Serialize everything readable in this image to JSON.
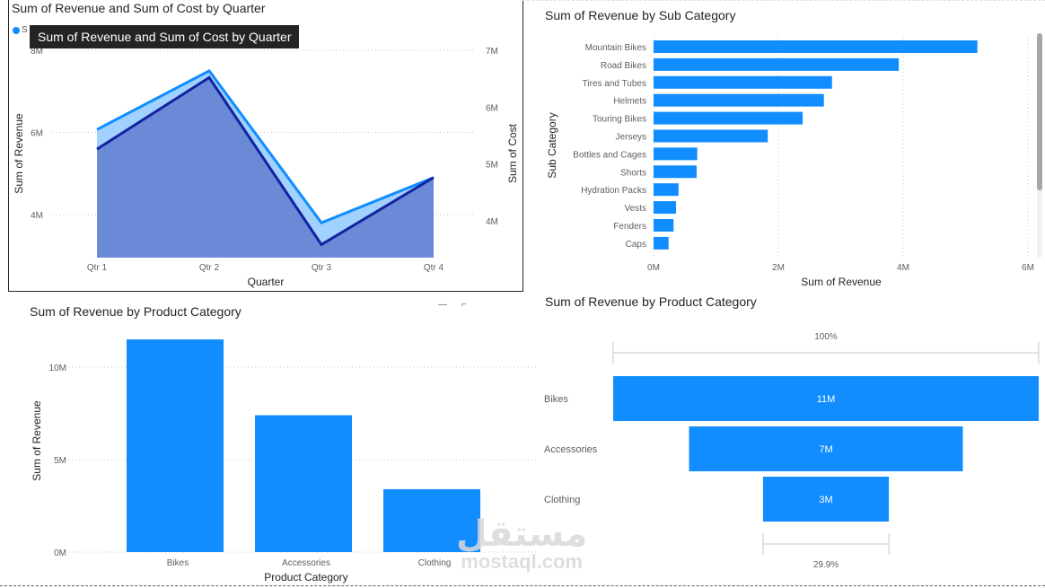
{
  "colors": {
    "accent": "#118dff",
    "revenue_area": "#a0d1ff",
    "revenue_line": "#118dff",
    "cost_area": "#6a8ad8",
    "cost_line": "#12239e",
    "tooltip_bg": "#252423"
  },
  "tooltip": {
    "text": "Sum of Revenue and Sum of Cost by Quarter"
  },
  "legend": {
    "partial_label": "S"
  },
  "watermark": {
    "arabic": "مستقل",
    "latin": "mostaql.com"
  },
  "chart_data": [
    {
      "id": "quarter_combo",
      "type": "area",
      "title": "Sum of Revenue and Sum of Cost by Quarter",
      "categories": [
        "Qtr 1",
        "Qtr 2",
        "Qtr 3",
        "Qtr 4"
      ],
      "xlabel": "Quarter",
      "ylabel": "Sum of Revenue",
      "y2label": "Sum of Cost",
      "y_ticks": [
        "8M",
        "6M",
        "4M"
      ],
      "y_tick_values": [
        8,
        6,
        4
      ],
      "y2_ticks": [
        "7M",
        "6M",
        "5M",
        "4M"
      ],
      "y2_tick_values": [
        7,
        6,
        5,
        4
      ],
      "ylim": [
        2.95,
        8.0
      ],
      "y2lim": [
        3.35,
        7.0
      ],
      "series": [
        {
          "name": "Sum of Revenue",
          "axis": "left",
          "values": [
            6.07,
            7.5,
            3.8,
            4.9
          ]
        },
        {
          "name": "Sum of Cost",
          "axis": "right",
          "values": [
            5.26,
            6.52,
            3.58,
            4.76
          ]
        }
      ],
      "units": "M",
      "grid": true
    },
    {
      "id": "subcategory_bar",
      "type": "bar",
      "orientation": "horizontal",
      "title": "Sum of Revenue by Sub Category",
      "categories": [
        "Mountain Bikes",
        "Road Bikes",
        "Tires and Tubes",
        "Helmets",
        "Touring Bikes",
        "Jerseys",
        "Bottles and Cages",
        "Shorts",
        "Hydration Packs",
        "Vests",
        "Fenders",
        "Caps"
      ],
      "values": [
        5.19,
        3.93,
        2.86,
        2.73,
        2.39,
        1.83,
        0.7,
        0.69,
        0.4,
        0.36,
        0.32,
        0.24
      ],
      "xlabel": "Sum of Revenue",
      "ylabel": "Sub Category",
      "x_ticks": [
        "0M",
        "2M",
        "4M",
        "6M"
      ],
      "x_tick_values": [
        0,
        2,
        4,
        6
      ],
      "xlim": [
        0,
        6
      ],
      "units": "M",
      "grid": true
    },
    {
      "id": "product_column",
      "type": "bar",
      "orientation": "vertical",
      "title": "Sum of Revenue by Product Category",
      "categories": [
        "Bikes",
        "Accessories",
        "Clothing"
      ],
      "values": [
        11.5,
        7.4,
        3.4
      ],
      "xlabel": "Product Category",
      "ylabel": "Sum of Revenue",
      "y_ticks": [
        "10M",
        "5M",
        "0M"
      ],
      "y_tick_values": [
        10,
        5,
        0
      ],
      "ylim": [
        0,
        11.5
      ],
      "units": "M",
      "grid": true
    },
    {
      "id": "product_funnel",
      "type": "bar",
      "subtype": "funnel",
      "title": "Sum of Revenue by Product Category",
      "categories": [
        "Bikes",
        "Accessories",
        "Clothing"
      ],
      "values": [
        11.5,
        7.4,
        3.4
      ],
      "data_labels": [
        "11M",
        "7M",
        "3M"
      ],
      "top_percent_label": "100%",
      "bottom_percent_label": "29.9%",
      "units": "M"
    }
  ]
}
